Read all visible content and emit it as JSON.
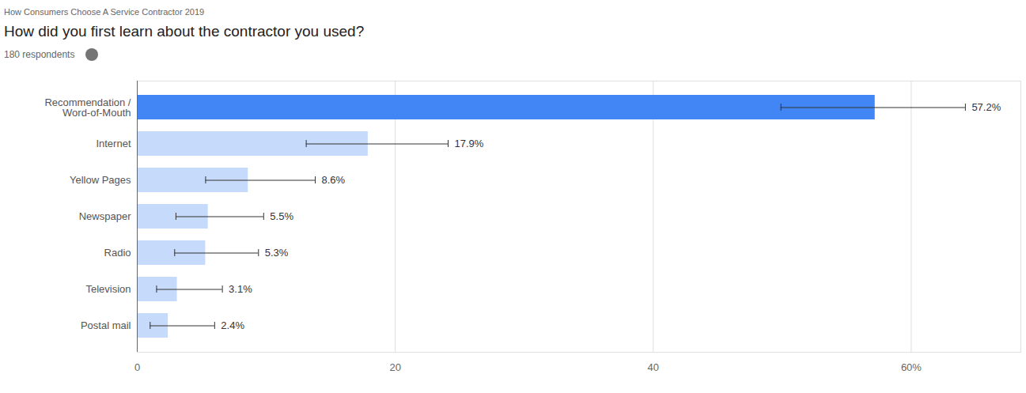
{
  "chart_data": {
    "type": "bar",
    "orientation": "horizontal",
    "supertitle": "How Consumers Choose A Service Contractor 2019",
    "title": "How did you first learn about the contractor you used?",
    "subtitle": "180 respondents",
    "categories": [
      "Recommendation /\nWord-of-Mouth",
      "Internet",
      "Yellow Pages",
      "Newspaper",
      "Radio",
      "Television",
      "Postal mail"
    ],
    "values": [
      57.2,
      17.9,
      8.6,
      5.5,
      5.3,
      3.1,
      2.4
    ],
    "value_labels": [
      "57.2%",
      "17.9%",
      "8.6%",
      "5.5%",
      "5.3%",
      "3.1%",
      "2.4%"
    ],
    "error_low": [
      49.9,
      13.1,
      5.3,
      3.0,
      2.9,
      1.5,
      1.0
    ],
    "error_high": [
      64.2,
      24.1,
      13.8,
      9.8,
      9.4,
      6.6,
      6.0
    ],
    "colors": [
      "#4285f4",
      "#c6dafc",
      "#c6dafc",
      "#c6dafc",
      "#c6dafc",
      "#c6dafc",
      "#c6dafc"
    ],
    "xlim": [
      0,
      68.5
    ],
    "xticks": [
      0,
      20,
      40,
      {
        "value": 60,
        "label": "60%"
      }
    ],
    "grid": true,
    "data_labels": true
  }
}
